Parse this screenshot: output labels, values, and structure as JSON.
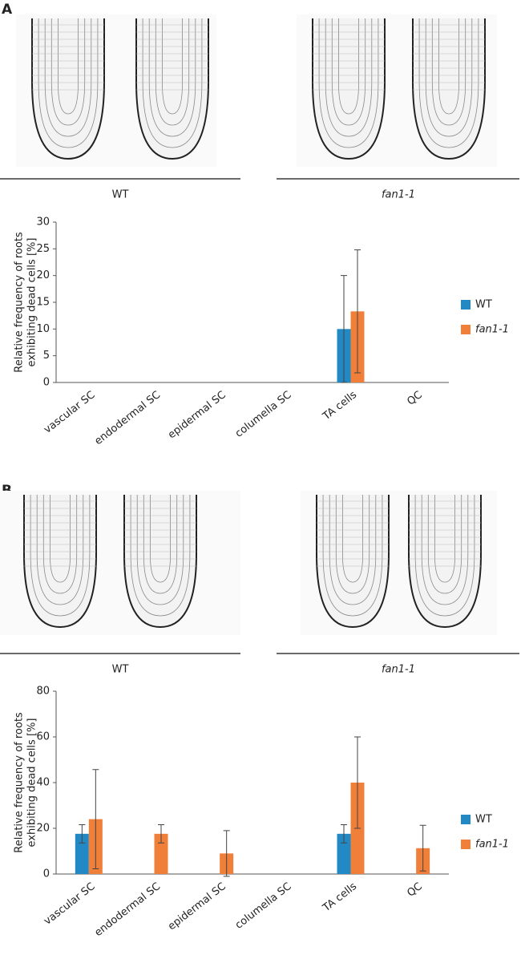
{
  "panels": [
    {
      "label": "A",
      "image_captions": [
        "WT",
        "fan1-1"
      ]
    },
    {
      "label": "B",
      "image_captions": [
        "WT",
        "fan1-1"
      ]
    }
  ],
  "chart_data": [
    {
      "type": "bar",
      "ylabel": [
        "Relative frequency of roots",
        "exhibiting dead cells [%]"
      ],
      "categories": [
        "vascular SC",
        "endodermal SC",
        "epidermal SC",
        "columella SC",
        "TA cells",
        "QC"
      ],
      "series": [
        {
          "name": "WT",
          "color": "#2389c4",
          "values": [
            0,
            0,
            0,
            0,
            10,
            0
          ],
          "errors": [
            0,
            0,
            0,
            0,
            10,
            0
          ]
        },
        {
          "name": "fan1-1",
          "color": "#f07f3a",
          "values": [
            0,
            0,
            0,
            0,
            13.3,
            0
          ],
          "errors": [
            0,
            0,
            0,
            0,
            11.5,
            0
          ]
        }
      ],
      "ylim": [
        0,
        30
      ],
      "yticks": [
        0,
        5,
        10,
        15,
        20,
        25,
        30
      ],
      "legend": "right"
    },
    {
      "type": "bar",
      "ylabel": [
        "Relative frequency of roots",
        "exhibiting dead cells [%]"
      ],
      "categories": [
        "vascular SC",
        "endodermal SC",
        "epidermal SC",
        "columella SC",
        "TA cells",
        "QC"
      ],
      "series": [
        {
          "name": "WT",
          "color": "#2389c4",
          "values": [
            17.6,
            0,
            0,
            0,
            17.6,
            0
          ],
          "errors": [
            4,
            0,
            0,
            0,
            4,
            0
          ]
        },
        {
          "name": "fan1-1",
          "color": "#f07f3a",
          "values": [
            24,
            17.6,
            9,
            0,
            40,
            11.3
          ],
          "errors": [
            21.7,
            4,
            10,
            0,
            20,
            10
          ]
        }
      ],
      "ylim": [
        0,
        80
      ],
      "yticks": [
        0,
        20,
        40,
        60,
        80
      ],
      "legend": "right"
    }
  ]
}
